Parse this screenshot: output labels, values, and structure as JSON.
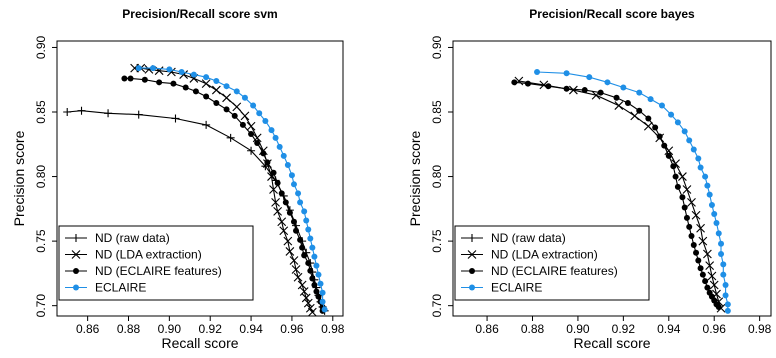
{
  "chart_data": [
    {
      "type": "line",
      "title": "Precision/Recall score  svm",
      "xlabel": "Recall score",
      "ylabel": "Precision score",
      "xlim": [
        0.845,
        0.985
      ],
      "ylim": [
        0.692,
        0.905
      ],
      "xticks": [
        "0.86",
        "0.88",
        "0.90",
        "0.92",
        "0.94",
        "0.96",
        "0.98"
      ],
      "yticks": [
        "0.70",
        "0.75",
        "0.80",
        "0.85",
        "0.90"
      ],
      "legend_position": "bottom-left",
      "series": [
        {
          "name": "ND (raw data)",
          "color": "#000000",
          "marker": "plus",
          "points": [
            [
              0.85,
              0.85
            ],
            [
              0.857,
              0.851
            ],
            [
              0.87,
              0.849
            ],
            [
              0.885,
              0.848
            ],
            [
              0.903,
              0.845
            ],
            [
              0.918,
              0.84
            ],
            [
              0.93,
              0.83
            ],
            [
              0.94,
              0.82
            ],
            [
              0.947,
              0.808
            ],
            [
              0.952,
              0.797
            ],
            [
              0.956,
              0.785
            ],
            [
              0.959,
              0.774
            ],
            [
              0.962,
              0.762
            ],
            [
              0.965,
              0.75
            ],
            [
              0.967,
              0.741
            ],
            [
              0.969,
              0.733
            ],
            [
              0.97,
              0.726
            ],
            [
              0.971,
              0.72
            ],
            [
              0.972,
              0.714
            ],
            [
              0.973,
              0.708
            ],
            [
              0.974,
              0.703
            ],
            [
              0.975,
              0.699
            ],
            [
              0.976,
              0.696
            ]
          ]
        },
        {
          "name": "ND (LDA extraction)",
          "color": "#000000",
          "marker": "cross",
          "points": [
            [
              0.883,
              0.884
            ],
            [
              0.886,
              0.884
            ],
            [
              0.89,
              0.883
            ],
            [
              0.895,
              0.882
            ],
            [
              0.901,
              0.881
            ],
            [
              0.907,
              0.879
            ],
            [
              0.912,
              0.876
            ],
            [
              0.918,
              0.872
            ],
            [
              0.923,
              0.867
            ],
            [
              0.928,
              0.861
            ],
            [
              0.933,
              0.854
            ],
            [
              0.937,
              0.847
            ],
            [
              0.94,
              0.839
            ],
            [
              0.943,
              0.83
            ],
            [
              0.946,
              0.82
            ],
            [
              0.948,
              0.81
            ],
            [
              0.95,
              0.8
            ],
            [
              0.951,
              0.79
            ],
            [
              0.952,
              0.78
            ],
            [
              0.953,
              0.773
            ],
            [
              0.955,
              0.765
            ],
            [
              0.956,
              0.758
            ],
            [
              0.958,
              0.75
            ],
            [
              0.959,
              0.742
            ],
            [
              0.961,
              0.735
            ],
            [
              0.962,
              0.728
            ],
            [
              0.963,
              0.722
            ],
            [
              0.965,
              0.716
            ],
            [
              0.966,
              0.711
            ],
            [
              0.967,
              0.706
            ],
            [
              0.968,
              0.702
            ],
            [
              0.969,
              0.698
            ],
            [
              0.97,
              0.695
            ]
          ]
        },
        {
          "name": "ND (ECLAIRE features)",
          "color": "#000000",
          "marker": "dot",
          "points": [
            [
              0.878,
              0.876
            ],
            [
              0.881,
              0.876
            ],
            [
              0.888,
              0.875
            ],
            [
              0.895,
              0.873
            ],
            [
              0.902,
              0.872
            ],
            [
              0.908,
              0.869
            ],
            [
              0.913,
              0.866
            ],
            [
              0.918,
              0.862
            ],
            [
              0.923,
              0.857
            ],
            [
              0.928,
              0.852
            ],
            [
              0.932,
              0.847
            ],
            [
              0.936,
              0.84
            ],
            [
              0.94,
              0.833
            ],
            [
              0.943,
              0.826
            ],
            [
              0.946,
              0.818
            ],
            [
              0.948,
              0.811
            ],
            [
              0.951,
              0.803
            ],
            [
              0.953,
              0.795
            ],
            [
              0.955,
              0.787
            ],
            [
              0.957,
              0.78
            ],
            [
              0.959,
              0.772
            ],
            [
              0.961,
              0.765
            ],
            [
              0.962,
              0.758
            ],
            [
              0.964,
              0.751
            ],
            [
              0.965,
              0.745
            ],
            [
              0.966,
              0.739
            ],
            [
              0.968,
              0.733
            ],
            [
              0.969,
              0.727
            ],
            [
              0.97,
              0.721
            ],
            [
              0.971,
              0.716
            ],
            [
              0.972,
              0.711
            ],
            [
              0.973,
              0.707
            ],
            [
              0.974,
              0.703
            ],
            [
              0.975,
              0.699
            ],
            [
              0.975,
              0.696
            ]
          ]
        },
        {
          "name": "ECLAIRE",
          "color": "#1f8fe6",
          "marker": "dot",
          "points": [
            [
              0.885,
              0.884
            ],
            [
              0.892,
              0.884
            ],
            [
              0.9,
              0.883
            ],
            [
              0.906,
              0.881
            ],
            [
              0.912,
              0.879
            ],
            [
              0.918,
              0.877
            ],
            [
              0.923,
              0.874
            ],
            [
              0.928,
              0.87
            ],
            [
              0.933,
              0.866
            ],
            [
              0.937,
              0.861
            ],
            [
              0.941,
              0.855
            ],
            [
              0.944,
              0.849
            ],
            [
              0.947,
              0.843
            ],
            [
              0.95,
              0.836
            ],
            [
              0.952,
              0.83
            ],
            [
              0.954,
              0.823
            ],
            [
              0.956,
              0.816
            ],
            [
              0.958,
              0.809
            ],
            [
              0.96,
              0.801
            ],
            [
              0.961,
              0.794
            ],
            [
              0.963,
              0.787
            ],
            [
              0.964,
              0.78
            ],
            [
              0.966,
              0.773
            ],
            [
              0.967,
              0.766
            ],
            [
              0.968,
              0.759
            ],
            [
              0.969,
              0.752
            ],
            [
              0.97,
              0.745
            ],
            [
              0.971,
              0.738
            ],
            [
              0.972,
              0.731
            ],
            [
              0.973,
              0.724
            ],
            [
              0.974,
              0.717
            ],
            [
              0.975,
              0.71
            ],
            [
              0.975,
              0.703
            ],
            [
              0.976,
              0.697
            ]
          ]
        }
      ]
    },
    {
      "type": "line",
      "title": "Precision/Recall score  bayes",
      "xlabel": "Recall score",
      "ylabel": "Precision score",
      "xlim": [
        0.845,
        0.985
      ],
      "ylim": [
        0.692,
        0.905
      ],
      "xticks": [
        "0.86",
        "0.88",
        "0.90",
        "0.92",
        "0.94",
        "0.96",
        "0.98"
      ],
      "yticks": [
        "0.70",
        "0.75",
        "0.80",
        "0.85",
        "0.90"
      ],
      "legend_position": "bottom-left",
      "series": [
        {
          "name": "ND (raw data)",
          "color": "#000000",
          "marker": "plus",
          "points": []
        },
        {
          "name": "ND (LDA extraction)",
          "color": "#000000",
          "marker": "cross",
          "points": [
            [
              0.874,
              0.874
            ],
            [
              0.885,
              0.871
            ],
            [
              0.898,
              0.867
            ],
            [
              0.908,
              0.863
            ],
            [
              0.918,
              0.855
            ],
            [
              0.925,
              0.847
            ],
            [
              0.931,
              0.839
            ],
            [
              0.936,
              0.83
            ],
            [
              0.94,
              0.82
            ],
            [
              0.943,
              0.81
            ],
            [
              0.946,
              0.8
            ],
            [
              0.948,
              0.79
            ],
            [
              0.95,
              0.78
            ],
            [
              0.952,
              0.77
            ],
            [
              0.954,
              0.76
            ],
            [
              0.955,
              0.75
            ],
            [
              0.957,
              0.74
            ],
            [
              0.958,
              0.731
            ],
            [
              0.959,
              0.723
            ],
            [
              0.96,
              0.716
            ],
            [
              0.961,
              0.709
            ],
            [
              0.962,
              0.703
            ],
            [
              0.963,
              0.698
            ]
          ]
        },
        {
          "name": "ND (ECLAIRE features)",
          "color": "#000000",
          "marker": "dot",
          "points": [
            [
              0.872,
              0.873
            ],
            [
              0.878,
              0.872
            ],
            [
              0.887,
              0.87
            ],
            [
              0.895,
              0.868
            ],
            [
              0.903,
              0.867
            ],
            [
              0.91,
              0.865
            ],
            [
              0.917,
              0.861
            ],
            [
              0.922,
              0.857
            ],
            [
              0.927,
              0.851
            ],
            [
              0.931,
              0.845
            ],
            [
              0.934,
              0.838
            ],
            [
              0.936,
              0.831
            ],
            [
              0.938,
              0.824
            ],
            [
              0.94,
              0.816
            ],
            [
              0.942,
              0.808
            ],
            [
              0.943,
              0.8
            ],
            [
              0.944,
              0.792
            ],
            [
              0.946,
              0.784
            ],
            [
              0.947,
              0.776
            ],
            [
              0.948,
              0.768
            ],
            [
              0.949,
              0.761
            ],
            [
              0.95,
              0.754
            ],
            [
              0.951,
              0.747
            ],
            [
              0.952,
              0.741
            ],
            [
              0.953,
              0.735
            ],
            [
              0.954,
              0.729
            ],
            [
              0.955,
              0.724
            ],
            [
              0.956,
              0.719
            ],
            [
              0.957,
              0.714
            ],
            [
              0.958,
              0.71
            ],
            [
              0.959,
              0.707
            ],
            [
              0.96,
              0.704
            ],
            [
              0.961,
              0.701
            ],
            [
              0.962,
              0.699
            ]
          ]
        },
        {
          "name": "ECLAIRE",
          "color": "#1f8fe6",
          "marker": "dot",
          "points": [
            [
              0.882,
              0.881
            ],
            [
              0.895,
              0.88
            ],
            [
              0.905,
              0.877
            ],
            [
              0.913,
              0.873
            ],
            [
              0.92,
              0.869
            ],
            [
              0.927,
              0.865
            ],
            [
              0.932,
              0.86
            ],
            [
              0.937,
              0.855
            ],
            [
              0.941,
              0.848
            ],
            [
              0.944,
              0.842
            ],
            [
              0.947,
              0.835
            ],
            [
              0.949,
              0.828
            ],
            [
              0.951,
              0.821
            ],
            [
              0.953,
              0.814
            ],
            [
              0.954,
              0.807
            ],
            [
              0.956,
              0.8
            ],
            [
              0.957,
              0.793
            ],
            [
              0.958,
              0.786
            ],
            [
              0.959,
              0.778
            ],
            [
              0.96,
              0.771
            ],
            [
              0.961,
              0.764
            ],
            [
              0.962,
              0.756
            ],
            [
              0.963,
              0.748
            ],
            [
              0.963,
              0.74
            ],
            [
              0.964,
              0.732
            ],
            [
              0.964,
              0.724
            ],
            [
              0.965,
              0.716
            ],
            [
              0.965,
              0.708
            ],
            [
              0.966,
              0.701
            ],
            [
              0.966,
              0.696
            ]
          ]
        }
      ]
    }
  ]
}
